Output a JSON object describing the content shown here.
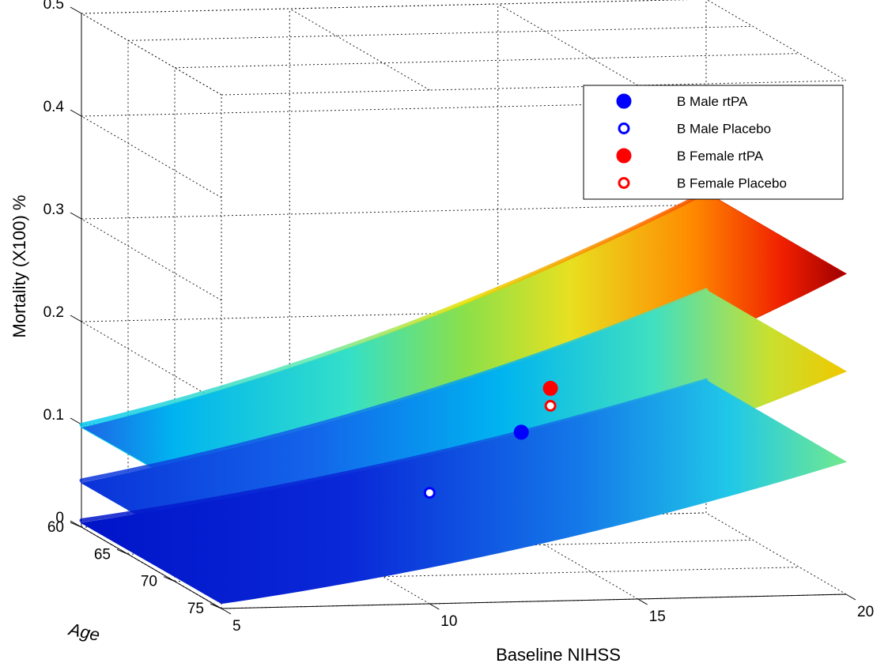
{
  "chart_data": {
    "type": "surface-3d",
    "xlabel": "Baseline NIHSS",
    "ylabel": "Age",
    "zlabel": "Mortality (X100) %",
    "xlim": [
      5,
      20
    ],
    "ylim": [
      60,
      75
    ],
    "zlim": [
      0,
      0.5
    ],
    "x_ticks": [
      5,
      10,
      15,
      20
    ],
    "y_ticks": [
      60,
      65,
      70,
      75
    ],
    "z_ticks": [
      0,
      0.1,
      0.2,
      0.3,
      0.4,
      0.5
    ],
    "z_tick_labels": [
      "0",
      "0.1",
      "0.2",
      "0.3",
      "0.4",
      "0.5"
    ],
    "grid": true,
    "legend_position": "top-right",
    "colormap": "jet",
    "surfaces": [
      {
        "z_at_x_min": 0.097,
        "z_at_x_max": 0.312
      },
      {
        "z_at_x_min": 0.043,
        "z_at_x_max": 0.217
      },
      {
        "z_at_x_min": 0.004,
        "z_at_x_max": 0.129
      }
    ],
    "series": [
      {
        "name": "B Male rtPA",
        "marker": "filled-circle",
        "color": "#0000ff",
        "x": 12.2,
        "y": 75,
        "z": 0.165
      },
      {
        "name": "B Male Placebo",
        "marker": "open-circle",
        "color": "#0000ff",
        "x": 10,
        "y": 75,
        "z": 0.108
      },
      {
        "name": "B Female rtPA",
        "marker": "filled-circle",
        "color": "#ff0000",
        "x": 12.9,
        "y": 75,
        "z": 0.207
      },
      {
        "name": "B Female Placebo",
        "marker": "open-circle",
        "color": "#ff0000",
        "x": 12.9,
        "y": 75,
        "z": 0.19
      }
    ]
  }
}
